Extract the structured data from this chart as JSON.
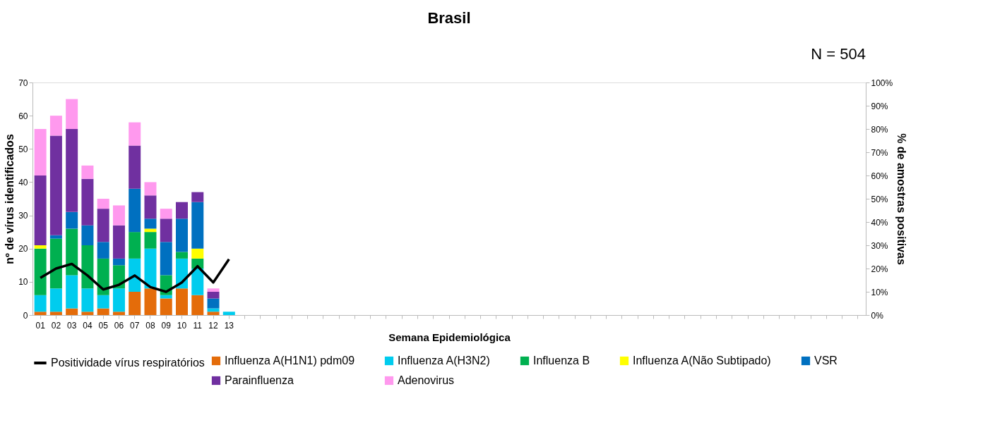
{
  "chart_data": {
    "type": "bar",
    "title": "Brasil",
    "annotations": [
      "N = 504"
    ],
    "xlabel": "Semana Epidemiológica",
    "ylabel": "nº de vírus identificados",
    "y2label": "% de amostras positivas",
    "stacked": true,
    "grid": false,
    "legend": "bottom",
    "categories": [
      "01",
      "02",
      "03",
      "04",
      "05",
      "06",
      "07",
      "08",
      "09",
      "10",
      "11",
      "12",
      "13",
      null,
      null,
      null,
      null,
      null,
      null,
      null,
      null,
      null,
      null,
      null,
      null,
      null,
      null,
      null,
      null,
      null,
      null,
      null,
      null,
      null,
      null,
      null,
      null,
      null,
      null,
      null,
      null,
      null,
      null,
      null,
      null,
      null,
      null,
      null,
      null,
      null,
      null,
      null,
      null
    ],
    "ylim": [
      0,
      70
    ],
    "yticks": [
      0,
      10,
      20,
      30,
      40,
      50,
      60,
      70
    ],
    "y2lim": [
      0,
      100
    ],
    "y2ticks": [
      {
        "value": 0,
        "label": "0%"
      },
      {
        "value": 10,
        "label": "10%"
      },
      {
        "value": 20,
        "label": "20%"
      },
      {
        "value": 30,
        "label": "30%"
      },
      {
        "value": 40,
        "label": "40%"
      },
      {
        "value": 50,
        "label": "50%"
      },
      {
        "value": 60,
        "label": "60%"
      },
      {
        "value": 70,
        "label": "70%"
      },
      {
        "value": 80,
        "label": "80%"
      },
      {
        "value": 90,
        "label": "90%"
      },
      {
        "value": 100,
        "label": "100%"
      }
    ],
    "series": [
      {
        "name": "Influenza A(H1N1) pdm09",
        "color": "#e46c0a",
        "values": [
          1,
          1,
          2,
          1,
          2,
          1,
          7,
          8,
          5,
          8,
          6,
          1,
          0,
          null,
          null,
          null,
          null,
          null,
          null,
          null,
          null,
          null,
          null,
          null,
          null,
          null,
          null,
          null,
          null,
          null,
          null,
          null,
          null,
          null,
          null,
          null,
          null,
          null,
          null,
          null,
          null,
          null,
          null,
          null,
          null,
          null,
          null,
          null,
          null,
          null,
          null,
          null,
          null
        ]
      },
      {
        "name": "Influenza A(H3N2)",
        "color": "#00ccee",
        "values": [
          5,
          7,
          10,
          7,
          4,
          7,
          10,
          12,
          1,
          9,
          8,
          1,
          1,
          null,
          null,
          null,
          null,
          null,
          null,
          null,
          null,
          null,
          null,
          null,
          null,
          null,
          null,
          null,
          null,
          null,
          null,
          null,
          null,
          null,
          null,
          null,
          null,
          null,
          null,
          null,
          null,
          null,
          null,
          null,
          null,
          null,
          null,
          null,
          null,
          null,
          null,
          null,
          null
        ]
      },
      {
        "name": "Influenza B",
        "color": "#00b050",
        "values": [
          14,
          15,
          14,
          13,
          11,
          7,
          8,
          5,
          6,
          2,
          3,
          0,
          0,
          null,
          null,
          null,
          null,
          null,
          null,
          null,
          null,
          null,
          null,
          null,
          null,
          null,
          null,
          null,
          null,
          null,
          null,
          null,
          null,
          null,
          null,
          null,
          null,
          null,
          null,
          null,
          null,
          null,
          null,
          null,
          null,
          null,
          null,
          null,
          null,
          null,
          null,
          null,
          null
        ]
      },
      {
        "name": "Influenza A(Não Subtipado)",
        "color": "#ffff00",
        "values": [
          1,
          0,
          0,
          0,
          0,
          0,
          0,
          1,
          0,
          0,
          3,
          0,
          0,
          null,
          null,
          null,
          null,
          null,
          null,
          null,
          null,
          null,
          null,
          null,
          null,
          null,
          null,
          null,
          null,
          null,
          null,
          null,
          null,
          null,
          null,
          null,
          null,
          null,
          null,
          null,
          null,
          null,
          null,
          null,
          null,
          null,
          null,
          null,
          null,
          null,
          null,
          null,
          null
        ]
      },
      {
        "name": "VSR",
        "color": "#0070c0",
        "values": [
          0,
          1,
          5,
          6,
          5,
          2,
          13,
          3,
          10,
          10,
          14,
          3,
          0,
          null,
          null,
          null,
          null,
          null,
          null,
          null,
          null,
          null,
          null,
          null,
          null,
          null,
          null,
          null,
          null,
          null,
          null,
          null,
          null,
          null,
          null,
          null,
          null,
          null,
          null,
          null,
          null,
          null,
          null,
          null,
          null,
          null,
          null,
          null,
          null,
          null,
          null,
          null,
          null
        ]
      },
      {
        "name": "Parainfluenza",
        "color": "#7030a0",
        "values": [
          21,
          30,
          25,
          14,
          10,
          10,
          13,
          7,
          7,
          5,
          3,
          2,
          0,
          null,
          null,
          null,
          null,
          null,
          null,
          null,
          null,
          null,
          null,
          null,
          null,
          null,
          null,
          null,
          null,
          null,
          null,
          null,
          null,
          null,
          null,
          null,
          null,
          null,
          null,
          null,
          null,
          null,
          null,
          null,
          null,
          null,
          null,
          null,
          null,
          null,
          null,
          null,
          null
        ]
      },
      {
        "name": "Adenovirus",
        "color": "#ff99ee",
        "values": [
          14,
          6,
          9,
          4,
          3,
          6,
          7,
          4,
          3,
          0,
          0,
          1,
          0,
          null,
          null,
          null,
          null,
          null,
          null,
          null,
          null,
          null,
          null,
          null,
          null,
          null,
          null,
          null,
          null,
          null,
          null,
          null,
          null,
          null,
          null,
          null,
          null,
          null,
          null,
          null,
          null,
          null,
          null,
          null,
          null,
          null,
          null,
          null,
          null,
          null,
          null,
          null,
          null
        ]
      },
      {
        "name": "Positividade vírus respiratórios",
        "type": "line",
        "axis": "y2",
        "color": "#000000",
        "values": [
          16,
          20,
          22,
          17,
          11,
          13,
          17,
          12,
          10,
          14,
          21,
          14,
          24,
          null,
          null,
          null,
          null,
          null,
          null,
          null,
          null,
          null,
          null,
          null,
          null,
          null,
          null,
          null,
          null,
          null,
          null,
          null,
          null,
          null,
          null,
          null,
          null,
          null,
          null,
          null,
          null,
          null,
          null,
          null,
          null,
          null,
          null,
          null,
          null,
          null,
          null,
          null,
          null
        ]
      }
    ]
  }
}
